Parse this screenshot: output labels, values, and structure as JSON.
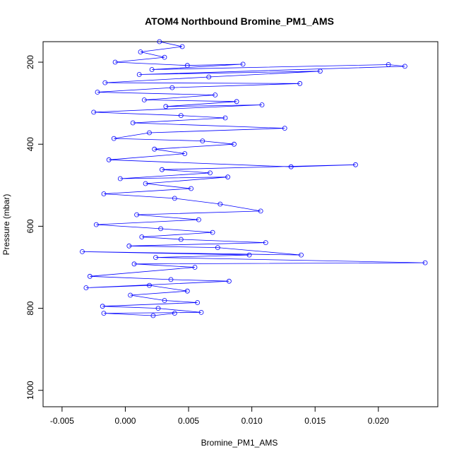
{
  "chart_data": {
    "type": "line",
    "title": "ATOM4 Northbound Bromine_PM1_AMS",
    "xlabel": "Bromine_PM1_AMS",
    "ylabel": "Pressure (mbar)",
    "xlim": [
      -0.0065,
      0.0247
    ],
    "ylim": [
      1040,
      150
    ],
    "y_reversed": true,
    "grid": false,
    "legend": "none",
    "x_ticks": [
      {
        "value": -0.005,
        "label": "-0.005"
      },
      {
        "value": 0.0,
        "label": "0.000"
      },
      {
        "value": 0.005,
        "label": "0.005"
      },
      {
        "value": 0.01,
        "label": "0.010"
      },
      {
        "value": 0.015,
        "label": "0.015"
      },
      {
        "value": 0.02,
        "label": "0.020"
      }
    ],
    "y_ticks": [
      {
        "value": 200,
        "label": "200"
      },
      {
        "value": 400,
        "label": "400"
      },
      {
        "value": 600,
        "label": "600"
      },
      {
        "value": 800,
        "label": "800"
      },
      {
        "value": 1000,
        "label": "1000"
      }
    ],
    "series_color": "#0000ff",
    "series": [
      {
        "marker": "open-circle",
        "points": [
          [
            0.0027,
            150
          ],
          [
            0.0045,
            162
          ],
          [
            0.0012,
            175
          ],
          [
            0.0031,
            188
          ],
          [
            -0.0008,
            200
          ],
          [
            0.0049,
            208
          ],
          [
            0.0093,
            205
          ],
          [
            0.0021,
            218
          ],
          [
            0.0208,
            206
          ],
          [
            0.0221,
            210
          ],
          [
            0.0011,
            230
          ],
          [
            0.0154,
            222
          ],
          [
            0.0066,
            236
          ],
          [
            -0.0016,
            250
          ],
          [
            0.0138,
            252
          ],
          [
            0.0037,
            262
          ],
          [
            -0.0022,
            273
          ],
          [
            0.0071,
            280
          ],
          [
            0.0015,
            292
          ],
          [
            0.0088,
            296
          ],
          [
            0.0032,
            308
          ],
          [
            0.0108,
            304
          ],
          [
            -0.0025,
            322
          ],
          [
            0.0044,
            330
          ],
          [
            0.0079,
            336
          ],
          [
            0.0006,
            348
          ],
          [
            0.0126,
            361
          ],
          [
            0.0019,
            372
          ],
          [
            -0.0009,
            386
          ],
          [
            0.0061,
            392
          ],
          [
            0.0086,
            400
          ],
          [
            0.0023,
            412
          ],
          [
            0.0047,
            423
          ],
          [
            -0.0013,
            438
          ],
          [
            0.0131,
            455
          ],
          [
            0.0182,
            450
          ],
          [
            0.0029,
            462
          ],
          [
            0.0067,
            470
          ],
          [
            -0.0004,
            484
          ],
          [
            0.0081,
            480
          ],
          [
            0.0016,
            496
          ],
          [
            0.0052,
            508
          ],
          [
            -0.0017,
            521
          ],
          [
            0.0039,
            532
          ],
          [
            0.0075,
            546
          ],
          [
            0.0107,
            563
          ],
          [
            0.0009,
            572
          ],
          [
            0.0058,
            584
          ],
          [
            -0.0023,
            596
          ],
          [
            0.0028,
            606
          ],
          [
            0.0069,
            615
          ],
          [
            0.0013,
            626
          ],
          [
            0.0044,
            632
          ],
          [
            0.0111,
            640
          ],
          [
            0.0003,
            648
          ],
          [
            0.0073,
            652
          ],
          [
            0.0139,
            670
          ],
          [
            -0.0034,
            662
          ],
          [
            0.0098,
            670
          ],
          [
            0.0024,
            676
          ],
          [
            0.0237,
            689
          ],
          [
            0.0007,
            692
          ],
          [
            0.0055,
            700
          ],
          [
            -0.0028,
            722
          ],
          [
            0.0036,
            730
          ],
          [
            0.0082,
            734
          ],
          [
            -0.0031,
            750
          ],
          [
            0.0019,
            744
          ],
          [
            0.0049,
            758
          ],
          [
            0.0004,
            768
          ],
          [
            0.0031,
            781
          ],
          [
            0.0057,
            786
          ],
          [
            -0.0018,
            795
          ],
          [
            0.0026,
            800
          ],
          [
            0.006,
            810
          ],
          [
            -0.0017,
            812
          ],
          [
            0.0022,
            818
          ],
          [
            0.0039,
            812
          ]
        ]
      }
    ]
  }
}
